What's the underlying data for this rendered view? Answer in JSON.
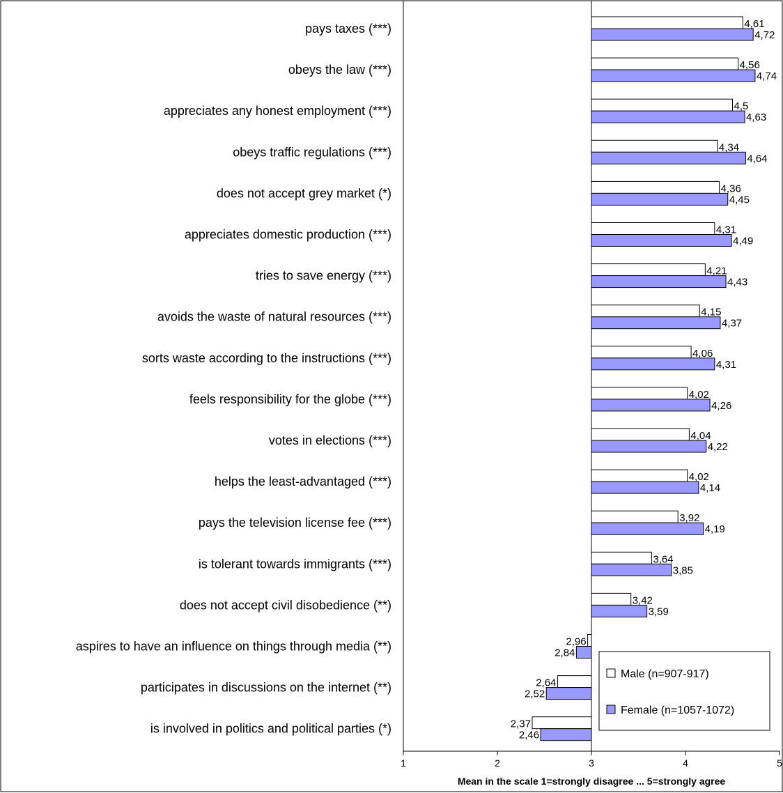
{
  "chart_data": {
    "type": "bar",
    "orientation": "horizontal",
    "categories": [
      "pays taxes (***)",
      "obeys the law (***)",
      "appreciates any honest employment (***)",
      "obeys traffic regulations (***)",
      "does not accept grey market (*)",
      "appreciates domestic production (***)",
      "tries to save energy (***)",
      "avoids the waste of natural resources (***)",
      "sorts waste according to the instructions (***)",
      "feels responsibility for the globe (***)",
      "votes in elections (***)",
      "helps the least-advantaged (***)",
      "pays the television license fee (***)",
      "is tolerant towards immigrants (***)",
      "does not accept civil disobedience (**)",
      "aspires to have an influence on things through media (**)",
      "participates in discussions on the internet (**)",
      "is involved in politics and political parties (*)"
    ],
    "series": [
      {
        "name": "Male (n=907-917)",
        "color": "#ffffff",
        "values": [
          4.61,
          4.56,
          4.5,
          4.34,
          4.36,
          4.31,
          4.21,
          4.15,
          4.06,
          4.02,
          4.04,
          4.02,
          3.92,
          3.64,
          3.42,
          2.96,
          2.64,
          2.37
        ],
        "labels": [
          "4,61",
          "4,56",
          "4,5",
          "4,34",
          "4,36",
          "4,31",
          "4,21",
          "4,15",
          "4,06",
          "4,02",
          "4,04",
          "4,02",
          "3,92",
          "3,64",
          "3,42",
          "2,96",
          "2,64",
          "2,37"
        ]
      },
      {
        "name": "Female (n=1057-1072)",
        "color": "#9999ff",
        "values": [
          4.72,
          4.74,
          4.63,
          4.64,
          4.45,
          4.49,
          4.43,
          4.37,
          4.31,
          4.26,
          4.22,
          4.14,
          4.19,
          3.85,
          3.59,
          2.84,
          2.52,
          2.46
        ],
        "labels": [
          "4,72",
          "4,74",
          "4,63",
          "4,64",
          "4,45",
          "4,49",
          "4,43",
          "4,37",
          "4,31",
          "4,26",
          "4,22",
          "4,14",
          "4,19",
          "3,85",
          "3,59",
          "2,84",
          "2,52",
          "2,46"
        ]
      }
    ],
    "baseline": 3,
    "xlim": [
      1,
      5
    ],
    "xticks": [
      "1",
      "2",
      "3",
      "4",
      "5"
    ],
    "xlabel": "Mean in the scale 1=strongly disagree ... 5=strongly agree",
    "legend_position": "bottom-right",
    "grid": false
  }
}
